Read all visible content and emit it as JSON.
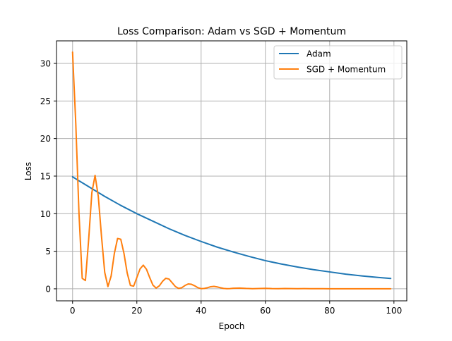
{
  "chart_data": {
    "type": "line",
    "title": "Loss Comparison: Adam vs SGD + Momentum",
    "xlabel": "Epoch",
    "ylabel": "Loss",
    "xlim": [
      -5,
      104
    ],
    "ylim": [
      -1.6,
      33.0
    ],
    "xticks": [
      0,
      20,
      40,
      60,
      80,
      100
    ],
    "yticks": [
      0,
      5,
      10,
      15,
      20,
      25,
      30
    ],
    "grid": true,
    "legend_position": "top-right",
    "series": [
      {
        "name": "Adam",
        "color": "#1f77b4",
        "x": [
          0,
          5,
          10,
          15,
          20,
          25,
          30,
          35,
          40,
          45,
          50,
          55,
          60,
          65,
          70,
          75,
          80,
          85,
          90,
          95,
          99
        ],
        "y": [
          14.9,
          13.6,
          12.3,
          11.1,
          10.0,
          9.0,
          8.0,
          7.1,
          6.3,
          5.55,
          4.9,
          4.3,
          3.75,
          3.3,
          2.9,
          2.55,
          2.25,
          1.95,
          1.72,
          1.52,
          1.38
        ]
      },
      {
        "name": "SGD + Momentum",
        "color": "#ff7f0e",
        "x": [
          0,
          1,
          2,
          3,
          4,
          5,
          6,
          7,
          8,
          9,
          10,
          11,
          12,
          13,
          14,
          15,
          16,
          17,
          18,
          19,
          20,
          21,
          22,
          23,
          24,
          25,
          26,
          27,
          28,
          29,
          30,
          31,
          32,
          33,
          34,
          35,
          36,
          37,
          38,
          39,
          40,
          41,
          42,
          43,
          44,
          45,
          46,
          47,
          48,
          49,
          50,
          52,
          54,
          56,
          58,
          60,
          62,
          64,
          66,
          68,
          70,
          72,
          74,
          76,
          78,
          80,
          82,
          84,
          86,
          88,
          90,
          92,
          94,
          96,
          98,
          99
        ],
        "y": [
          31.5,
          22.0,
          10.0,
          1.4,
          1.1,
          6.5,
          12.8,
          15.1,
          12.3,
          7.0,
          2.2,
          0.3,
          1.7,
          4.7,
          6.7,
          6.6,
          4.7,
          2.1,
          0.45,
          0.35,
          1.5,
          2.65,
          3.15,
          2.6,
          1.5,
          0.5,
          0.1,
          0.4,
          1.0,
          1.4,
          1.3,
          0.8,
          0.3,
          0.05,
          0.15,
          0.45,
          0.65,
          0.6,
          0.4,
          0.15,
          0.02,
          0.05,
          0.15,
          0.28,
          0.32,
          0.25,
          0.15,
          0.05,
          0.02,
          0.03,
          0.08,
          0.1,
          0.05,
          0.02,
          0.04,
          0.07,
          0.03,
          0.02,
          0.04,
          0.03,
          0.02,
          0.03,
          0.02,
          0.02,
          0.02,
          0.01,
          0.01,
          0.01,
          0.01,
          0.01,
          0.01,
          0.01,
          0.01,
          0.01,
          0.01,
          0.01
        ]
      }
    ]
  }
}
